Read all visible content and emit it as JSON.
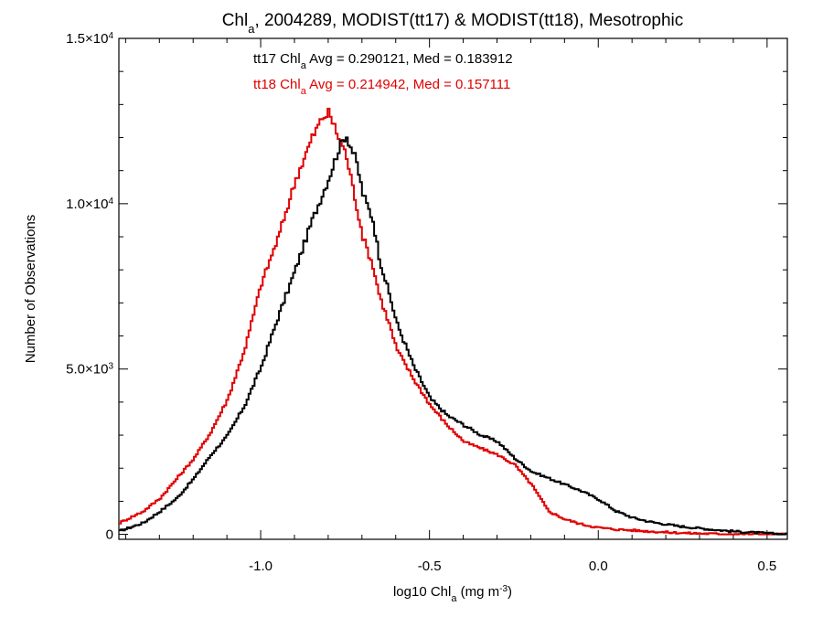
{
  "chart_data": {
    "type": "line",
    "title_main": "Chl",
    "title_sub": "a",
    "title_rest": ", 2004289, MODIST(tt17) & MODIST(tt18), Mesotrophic",
    "xlabel_main": "log10 Chl",
    "xlabel_sub": "a",
    "xlabel_units": " (mg m",
    "xlabel_units_sup": "-3",
    "xlabel_units_end": ")",
    "ylabel": "Number of Observations",
    "xlim": [
      -1.42,
      0.56
    ],
    "ylim": [
      -150,
      15000
    ],
    "x_ticks": [
      -1.0,
      -0.5,
      0.0,
      0.5
    ],
    "x_tick_labels": [
      "-1.0",
      "-0.5",
      "0.0",
      "0.5"
    ],
    "y_ticks": [
      {
        "value": 0,
        "mantissa": "0",
        "sup": ""
      },
      {
        "value": 5000,
        "mantissa": "5.0×10",
        "sup": "3"
      },
      {
        "value": 10000,
        "mantissa": "1.0×10",
        "sup": "4"
      },
      {
        "value": 15000,
        "mantissa": "1.5×10",
        "sup": "4"
      }
    ],
    "colors": {
      "tt17": "#000000",
      "tt18": "#e00000"
    },
    "legend": [
      {
        "key": "tt17",
        "prefix": "tt17 Chl",
        "sub": "a",
        "suffix": " Avg = 0.290121, Med = 0.183912"
      },
      {
        "key": "tt18",
        "prefix": "tt18 Chl",
        "sub": "a",
        "suffix": " Avg = 0.214942, Med = 0.157111"
      }
    ],
    "series": [
      {
        "name": "tt17",
        "color": "#000000",
        "points": [
          [
            -1.42,
            100
          ],
          [
            -1.35,
            350
          ],
          [
            -1.3,
            700
          ],
          [
            -1.25,
            1100
          ],
          [
            -1.2,
            1700
          ],
          [
            -1.15,
            2400
          ],
          [
            -1.1,
            3000
          ],
          [
            -1.05,
            3900
          ],
          [
            -1.0,
            5100
          ],
          [
            -0.95,
            6600
          ],
          [
            -0.9,
            8000
          ],
          [
            -0.85,
            9500
          ],
          [
            -0.8,
            10800
          ],
          [
            -0.77,
            11700
          ],
          [
            -0.75,
            12100
          ],
          [
            -0.72,
            11300
          ],
          [
            -0.7,
            10300
          ],
          [
            -0.67,
            9500
          ],
          [
            -0.65,
            8300
          ],
          [
            -0.62,
            7200
          ],
          [
            -0.6,
            6400
          ],
          [
            -0.55,
            5100
          ],
          [
            -0.5,
            4100
          ],
          [
            -0.45,
            3600
          ],
          [
            -0.4,
            3300
          ],
          [
            -0.35,
            3000
          ],
          [
            -0.3,
            2800
          ],
          [
            -0.25,
            2300
          ],
          [
            -0.2,
            1900
          ],
          [
            -0.15,
            1700
          ],
          [
            -0.1,
            1500
          ],
          [
            -0.05,
            1300
          ],
          [
            0.0,
            1050
          ],
          [
            0.05,
            700
          ],
          [
            0.1,
            500
          ],
          [
            0.15,
            380
          ],
          [
            0.2,
            300
          ],
          [
            0.25,
            230
          ],
          [
            0.3,
            180
          ],
          [
            0.35,
            130
          ],
          [
            0.4,
            90
          ],
          [
            0.45,
            60
          ],
          [
            0.5,
            30
          ],
          [
            0.56,
            0
          ]
        ]
      },
      {
        "name": "tt18",
        "color": "#e00000",
        "points": [
          [
            -1.42,
            350
          ],
          [
            -1.35,
            700
          ],
          [
            -1.3,
            1100
          ],
          [
            -1.25,
            1700
          ],
          [
            -1.2,
            2300
          ],
          [
            -1.15,
            3100
          ],
          [
            -1.1,
            4100
          ],
          [
            -1.05,
            5600
          ],
          [
            -1.0,
            7600
          ],
          [
            -0.95,
            9000
          ],
          [
            -0.9,
            10700
          ],
          [
            -0.85,
            12000
          ],
          [
            -0.82,
            12600
          ],
          [
            -0.8,
            12750
          ],
          [
            -0.78,
            12200
          ],
          [
            -0.75,
            11500
          ],
          [
            -0.72,
            10000
          ],
          [
            -0.7,
            9000
          ],
          [
            -0.67,
            8100
          ],
          [
            -0.65,
            7200
          ],
          [
            -0.62,
            6300
          ],
          [
            -0.6,
            5600
          ],
          [
            -0.55,
            4700
          ],
          [
            -0.5,
            3900
          ],
          [
            -0.45,
            3300
          ],
          [
            -0.4,
            2800
          ],
          [
            -0.35,
            2600
          ],
          [
            -0.3,
            2400
          ],
          [
            -0.25,
            2100
          ],
          [
            -0.2,
            1500
          ],
          [
            -0.15,
            700
          ],
          [
            -0.1,
            450
          ],
          [
            -0.05,
            300
          ],
          [
            0.0,
            200
          ],
          [
            0.05,
            150
          ],
          [
            0.1,
            120
          ],
          [
            0.15,
            90
          ],
          [
            0.2,
            60
          ],
          [
            0.25,
            40
          ],
          [
            0.3,
            25
          ],
          [
            0.35,
            15
          ],
          [
            0.4,
            10
          ],
          [
            0.5,
            5
          ],
          [
            0.56,
            0
          ]
        ]
      }
    ]
  }
}
